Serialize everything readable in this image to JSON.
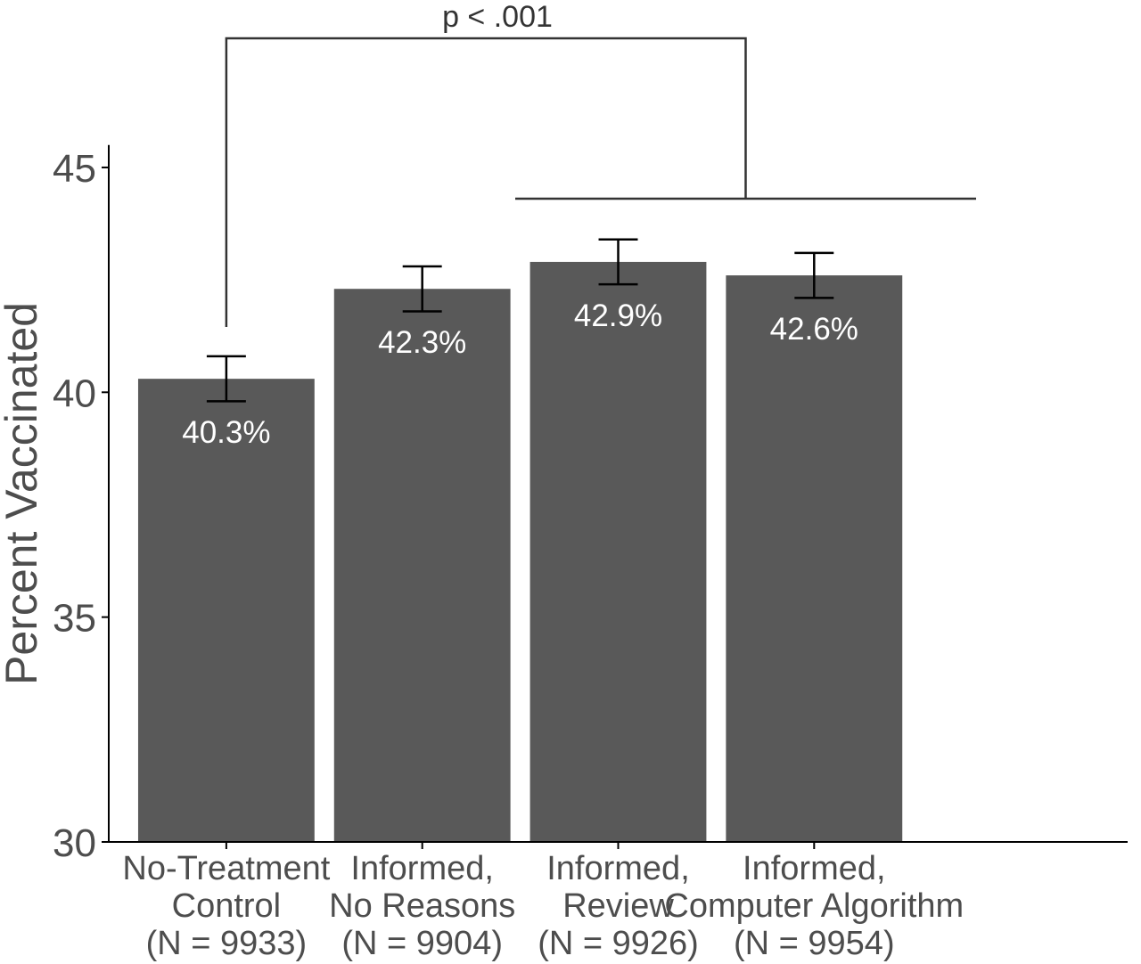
{
  "chart_data": {
    "type": "bar",
    "categories": [
      {
        "lines": [
          "No-Treatment",
          "Control",
          "(N = 9933)"
        ]
      },
      {
        "lines": [
          "Informed,",
          "No Reasons",
          "(N = 9904)"
        ]
      },
      {
        "lines": [
          "Informed,",
          "Review",
          "(N = 9926)"
        ]
      },
      {
        "lines": [
          "Informed,",
          "Computer Algorithm",
          "(N = 9954)"
        ]
      }
    ],
    "values": [
      40.3,
      42.3,
      42.9,
      42.6
    ],
    "value_labels": [
      "40.3%",
      "42.3%",
      "42.9%",
      "42.6%"
    ],
    "error_bars": [
      {
        "low": 39.8,
        "high": 40.8
      },
      {
        "low": 41.8,
        "high": 42.8
      },
      {
        "low": 42.4,
        "high": 43.4
      },
      {
        "low": 42.1,
        "high": 43.1
      }
    ],
    "xlabel": "",
    "ylabel": "Percent Vaccinated",
    "ylim": [
      30,
      45.5
    ],
    "yticks": [
      30,
      35,
      40,
      45
    ],
    "ytick_labels": [
      "30",
      "35",
      "40",
      "45"
    ],
    "grid": false,
    "legend": false,
    "annotations": [
      {
        "text": "p < .001",
        "left_group": [
          0
        ],
        "right_group": [
          1,
          2,
          3
        ]
      }
    ]
  },
  "colors": {
    "bar": "#595959",
    "value_label": "#ffffff",
    "error_bar": "#000000",
    "axis": "#000000",
    "tick_label": "#4d4d4d",
    "axis_title": "#4d4d4d",
    "annotation": "#333333"
  }
}
